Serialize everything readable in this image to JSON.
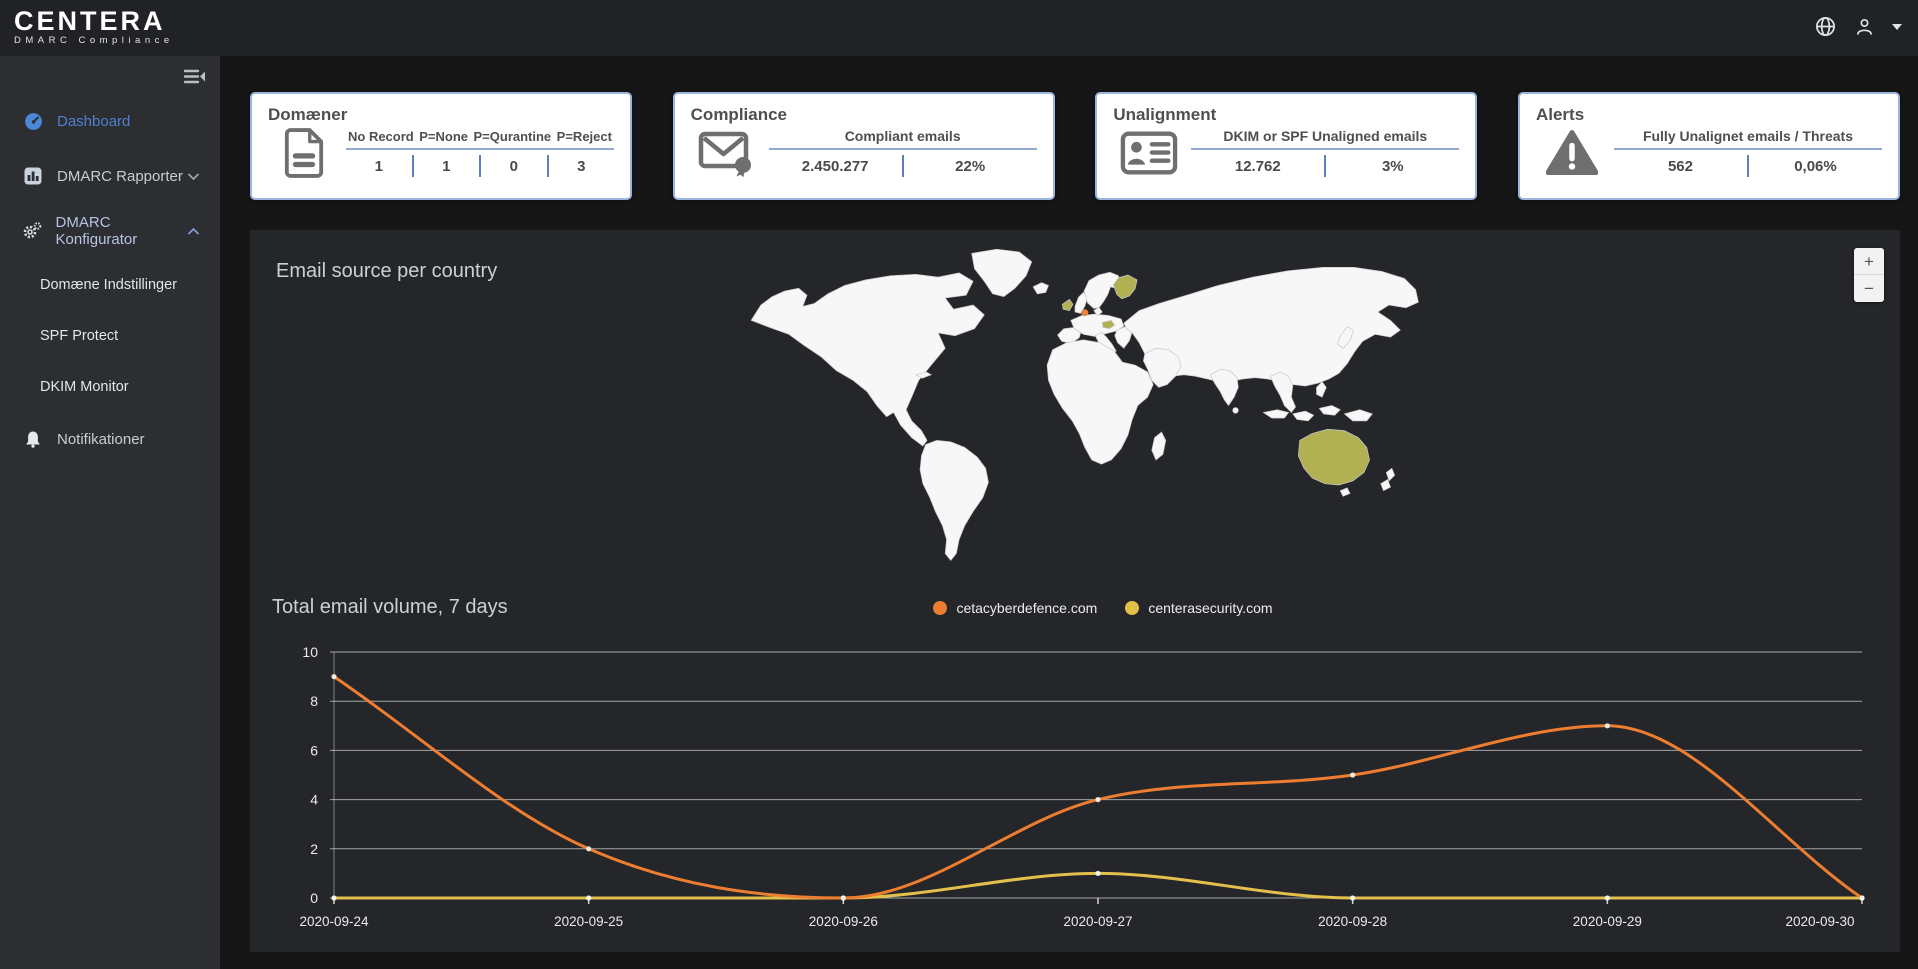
{
  "brand": {
    "name": "CENTERA",
    "subtitle": "DMARC Compliance"
  },
  "topbar": {
    "icons": [
      "globe",
      "user",
      "chevron-down"
    ]
  },
  "sidebar": {
    "items": [
      {
        "label": "Dashboard",
        "icon": "dashboard-gauge",
        "active": true
      },
      {
        "label": "DMARC Rapporter",
        "icon": "bar-chart",
        "chevron": "down"
      },
      {
        "label": "DMARC Konfigurator",
        "icon": "gears",
        "chevron": "up",
        "expanded": true
      },
      {
        "label": "Domæne Indstillinger",
        "indent": true
      },
      {
        "label": "SPF Protect",
        "indent": true
      },
      {
        "label": "DKIM Monitor",
        "indent": true
      },
      {
        "label": "Notifikationer",
        "icon": "bell"
      }
    ]
  },
  "cards": [
    {
      "title": "Domæner",
      "icon": "document",
      "headers": [
        "No Record",
        "P=None",
        "P=Qurantine",
        "P=Reject"
      ],
      "values": [
        "1",
        "1",
        "0",
        "3"
      ]
    },
    {
      "title": "Compliance",
      "icon": "certified-email",
      "headers": [
        "Compliant emails"
      ],
      "values": [
        "2.450.277",
        "22%"
      ]
    },
    {
      "title": "Unalignment",
      "icon": "id-card",
      "headers": [
        "DKIM or SPF Unaligned emails"
      ],
      "values": [
        "12.762",
        "3%"
      ]
    },
    {
      "title": "Alerts",
      "icon": "warning-triangle",
      "headers": [
        "Fully Unalignet emails / Threats"
      ],
      "values": [
        "562",
        "0,06%"
      ]
    }
  ],
  "map": {
    "title": "Email source per country",
    "zoom_in_label": "+",
    "zoom_out_label": "−",
    "highlighted_countries": [
      "Finland",
      "Ireland",
      "Austria",
      "Australia"
    ],
    "marker_country": "Netherlands",
    "colors": {
      "country": "#f7f7f7",
      "border": "#c9c9c9",
      "highlight": "#b1b153",
      "marker": "#e8833a"
    }
  },
  "chart_data": {
    "type": "line",
    "title": "Total email volume, 7 days",
    "x": [
      "2020-09-24",
      "2020-09-25",
      "2020-09-26",
      "2020-09-27",
      "2020-09-28",
      "2020-09-29",
      "2020-09-30"
    ],
    "series": [
      {
        "name": "cetacyberdefence.com",
        "color": "#ed7d31",
        "values": [
          9,
          2,
          0,
          4,
          5,
          7,
          0
        ]
      },
      {
        "name": "centerasecurity.com",
        "color": "#e3c04c",
        "values": [
          0,
          0,
          0,
          1,
          0,
          0,
          0
        ]
      }
    ],
    "ylim": [
      0,
      10
    ],
    "yticks": [
      0,
      2,
      4,
      6,
      8,
      10
    ],
    "grid": true,
    "legend_position": "top-center"
  }
}
